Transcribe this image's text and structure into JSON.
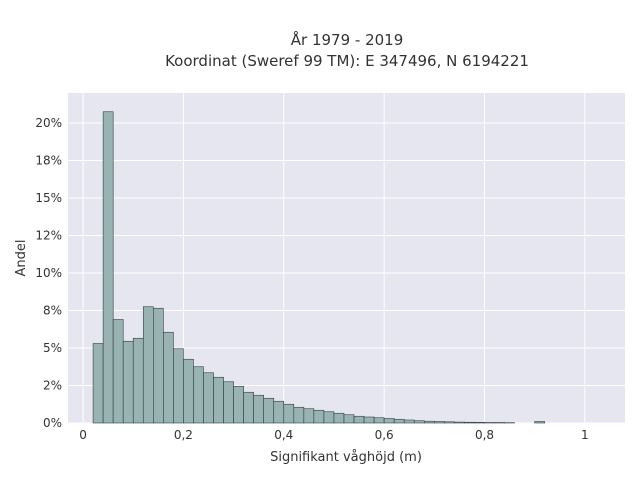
{
  "chart_data": {
    "type": "bar",
    "title_lines": [
      "År 1979 - 2019",
      "Koordinat (Sweref 99 TM): E 347496, N 6194221"
    ],
    "xlabel": "Signifikant våghöjd (m)",
    "ylabel": "Andel",
    "xlim": [
      -0.03,
      1.08
    ],
    "ylim": [
      0,
      0.22
    ],
    "x_ticks": [
      0,
      0.2,
      0.4,
      0.6,
      0.8,
      1
    ],
    "x_tick_labels": [
      "0",
      "0,2",
      "0,4",
      "0,6",
      "0,8",
      "1"
    ],
    "y_ticks": [
      0,
      0.025,
      0.05,
      0.075,
      0.1,
      0.125,
      0.15,
      0.175,
      0.2
    ],
    "y_tick_labels": [
      "0%",
      "2%",
      "5%",
      "8%",
      "10%",
      "12%",
      "15%",
      "18%",
      "20%"
    ],
    "bin_width": 0.02,
    "bin_starts": [
      0.02,
      0.04,
      0.06,
      0.08,
      0.1,
      0.12,
      0.14,
      0.16,
      0.18,
      0.2,
      0.22,
      0.24,
      0.26,
      0.28,
      0.3,
      0.32,
      0.34,
      0.36,
      0.38,
      0.4,
      0.42,
      0.44,
      0.46,
      0.48,
      0.5,
      0.52,
      0.54,
      0.56,
      0.58,
      0.6,
      0.62,
      0.64,
      0.66,
      0.68,
      0.7,
      0.72,
      0.74,
      0.76,
      0.78,
      0.8,
      0.82,
      0.84,
      0.86,
      0.88,
      0.9
    ],
    "values": [
      0.053,
      0.2075,
      0.069,
      0.0545,
      0.0565,
      0.0775,
      0.0765,
      0.0605,
      0.0495,
      0.0425,
      0.0375,
      0.0335,
      0.0305,
      0.0275,
      0.0245,
      0.0205,
      0.0185,
      0.0165,
      0.0145,
      0.0125,
      0.0105,
      0.0095,
      0.0085,
      0.0075,
      0.0065,
      0.0055,
      0.0045,
      0.004,
      0.0035,
      0.003,
      0.0025,
      0.002,
      0.0015,
      0.0012,
      0.001,
      0.0008,
      0.0006,
      0.0005,
      0.0004,
      0.0003,
      0.0003,
      0.0002,
      0.0,
      0.0,
      0.001
    ],
    "bar_color": "#98b3b2",
    "bar_edge_color": "#2f3f3e",
    "plot_bg": "#e5e6ef",
    "grid_color": "#ffffff",
    "grid": true
  }
}
